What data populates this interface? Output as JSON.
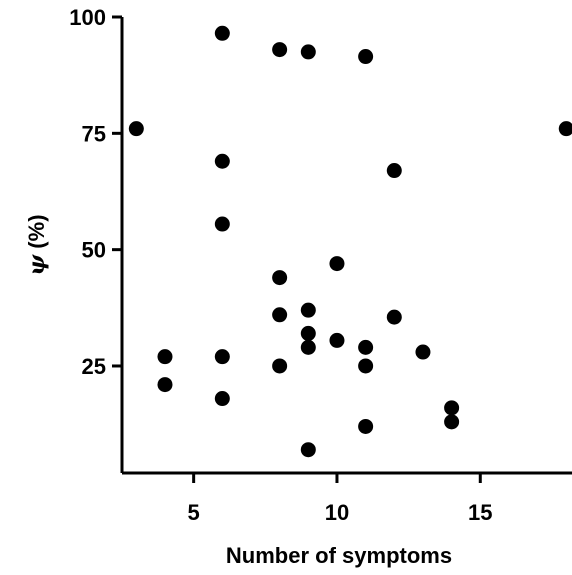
{
  "chart_data": {
    "type": "scatter",
    "title": "",
    "xlabel": "Number of symptoms",
    "ylabel_symbol": "ψ",
    "ylabel_rest": " (%)",
    "xlim": [
      2.5,
      18.2
    ],
    "ylim": [
      2,
      100
    ],
    "xticks": [
      5,
      10,
      15
    ],
    "yticks": [
      25,
      50,
      75,
      100
    ],
    "grid": false,
    "marker_color": "#000000",
    "points": [
      {
        "x": 3,
        "y": 76
      },
      {
        "x": 4,
        "y": 27
      },
      {
        "x": 4,
        "y": 21
      },
      {
        "x": 6,
        "y": 96.5
      },
      {
        "x": 6,
        "y": 69
      },
      {
        "x": 6,
        "y": 55.5
      },
      {
        "x": 6,
        "y": 27
      },
      {
        "x": 6,
        "y": 18
      },
      {
        "x": 8,
        "y": 93
      },
      {
        "x": 8,
        "y": 44
      },
      {
        "x": 8,
        "y": 36
      },
      {
        "x": 8,
        "y": 25
      },
      {
        "x": 9,
        "y": 92.5
      },
      {
        "x": 9,
        "y": 37
      },
      {
        "x": 9,
        "y": 32
      },
      {
        "x": 9,
        "y": 29
      },
      {
        "x": 9,
        "y": 7
      },
      {
        "x": 10,
        "y": 47
      },
      {
        "x": 10,
        "y": 30.5
      },
      {
        "x": 11,
        "y": 91.5
      },
      {
        "x": 11,
        "y": 29
      },
      {
        "x": 11,
        "y": 25
      },
      {
        "x": 11,
        "y": 12
      },
      {
        "x": 12,
        "y": 67
      },
      {
        "x": 12,
        "y": 35.5
      },
      {
        "x": 13,
        "y": 28
      },
      {
        "x": 14,
        "y": 16
      },
      {
        "x": 14,
        "y": 13
      },
      {
        "x": 18,
        "y": 76
      }
    ]
  }
}
